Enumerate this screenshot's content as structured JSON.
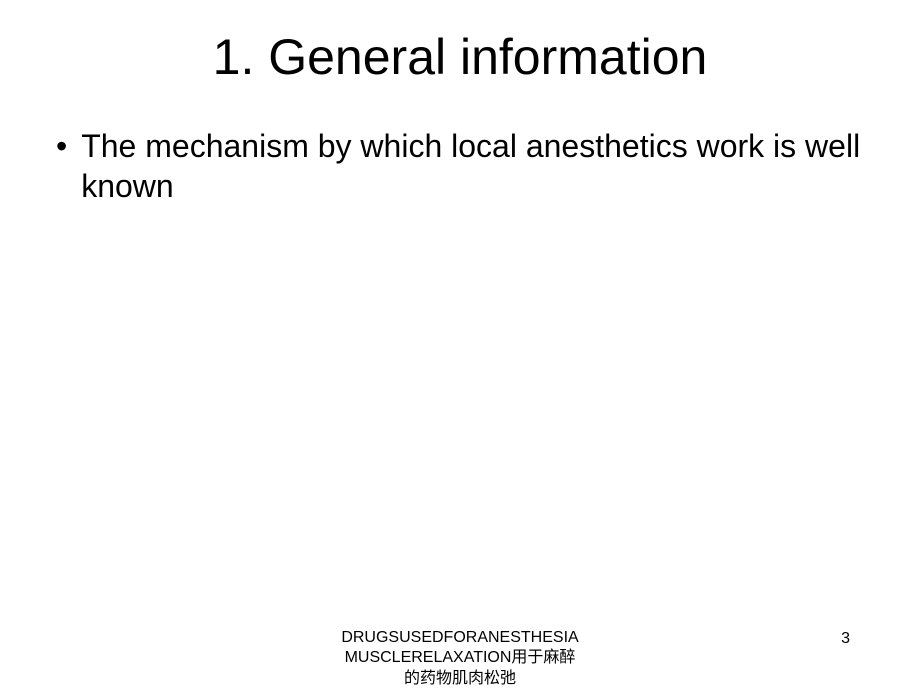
{
  "slide": {
    "title": "1. General information",
    "bullets": [
      {
        "text": "The mechanism by which local anesthetics work is well known"
      }
    ],
    "footer_line1": "DRUGSUSEDFORANESTHESIA",
    "footer_line2": "MUSCLERELAXATION用于麻醉",
    "footer_line3": "的药物肌肉松弛",
    "page_number": "3",
    "title_fontsize": 50,
    "body_fontsize": 32,
    "footer_fontsize": 16,
    "background_color": "#ffffff",
    "text_color": "#000000"
  }
}
